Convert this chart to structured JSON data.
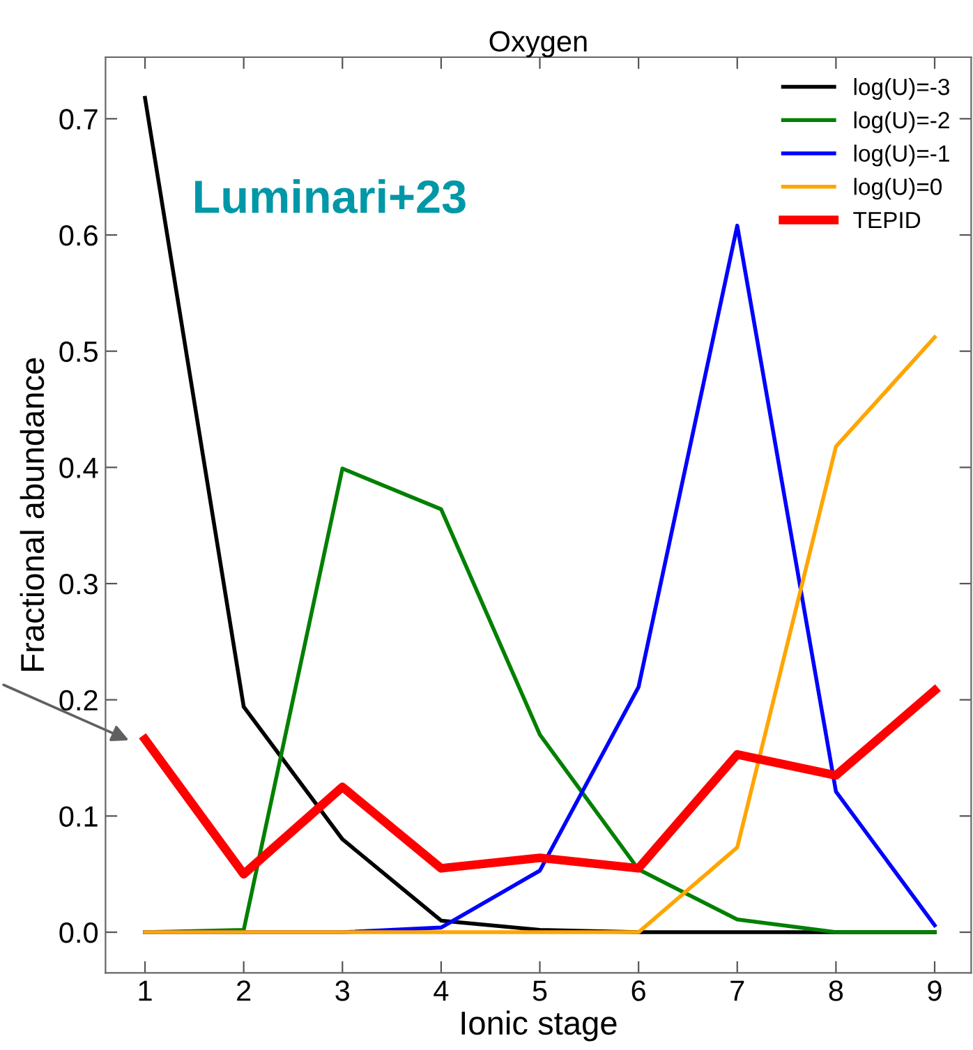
{
  "chart_data": {
    "type": "line",
    "title": "Oxygen",
    "xlabel": "Ionic stage",
    "ylabel": "Fractional abundance",
    "x": [
      1,
      2,
      3,
      4,
      5,
      6,
      7,
      8,
      9
    ],
    "series": [
      {
        "name": "log(U)=-3",
        "color": "#000000",
        "values": [
          0.718,
          0.194,
          0.08,
          0.01,
          0.002,
          0,
          0,
          0,
          0
        ]
      },
      {
        "name": "log(U)=-2",
        "color": "#008000",
        "values": [
          0.0,
          0.002,
          0.399,
          0.364,
          0.17,
          0.054,
          0.011,
          0,
          0
        ]
      },
      {
        "name": "log(U)=-1",
        "color": "#0000ff",
        "values": [
          0,
          0,
          0,
          0.004,
          0.053,
          0.211,
          0.608,
          0.121,
          0.006
        ]
      },
      {
        "name": "log(U)=0",
        "color": "#ffa500",
        "values": [
          0,
          0,
          0,
          0,
          0,
          0,
          0.073,
          0.418,
          0.512
        ]
      },
      {
        "name": "TEPID",
        "color": "#ff0000",
        "values": [
          0.166,
          0.05,
          0.125,
          0.055,
          0.064,
          0.055,
          0.153,
          0.135,
          0.208
        ]
      }
    ],
    "xlim": [
      0.6,
      9.37
    ],
    "ylim": [
      -0.035,
      0.753
    ],
    "xticks": [
      1,
      2,
      3,
      4,
      5,
      6,
      7,
      8,
      9
    ],
    "yticks": [
      {
        "value": 0,
        "label": "0.0"
      },
      0.1,
      0.2,
      0.3,
      0.4,
      0.5,
      0.6,
      0.7
    ],
    "annotations": [
      "Luminari+23"
    ],
    "legend": "top right",
    "grid": false
  }
}
